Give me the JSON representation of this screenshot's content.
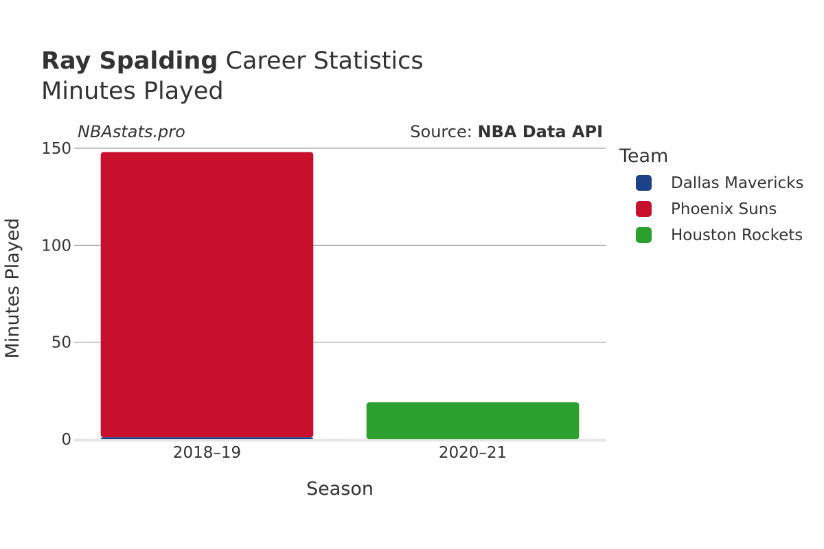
{
  "header": {
    "player": "Ray Spalding",
    "title_suffix": "Career Statistics",
    "subtitle": "Minutes Played"
  },
  "watermark": "NBAstats.pro",
  "source": {
    "prefix": "Source: ",
    "name": "NBA Data API"
  },
  "legend": {
    "title": "Team",
    "items": [
      {
        "label": "Dallas Mavericks",
        "color": "#1D428A"
      },
      {
        "label": "Phoenix Suns",
        "color": "#C8102E"
      },
      {
        "label": "Houston Rockets",
        "color": "#2CA02C"
      }
    ]
  },
  "chart_data": {
    "type": "bar",
    "stacked": true,
    "categories": [
      "2018–19",
      "2020–21"
    ],
    "series": [
      {
        "name": "Dallas Mavericks",
        "color": "#1D428A",
        "values": [
          1,
          0
        ]
      },
      {
        "name": "Phoenix Suns",
        "color": "#C8102E",
        "values": [
          147,
          0
        ]
      },
      {
        "name": "Houston Rockets",
        "color": "#2CA02C",
        "values": [
          0,
          19
        ]
      }
    ],
    "xlabel": "Season",
    "ylabel": "Minutes Played",
    "ylim": [
      0,
      150
    ],
    "yticks": [
      0,
      50,
      100,
      150
    ],
    "grid": true,
    "legend_position": "right"
  }
}
